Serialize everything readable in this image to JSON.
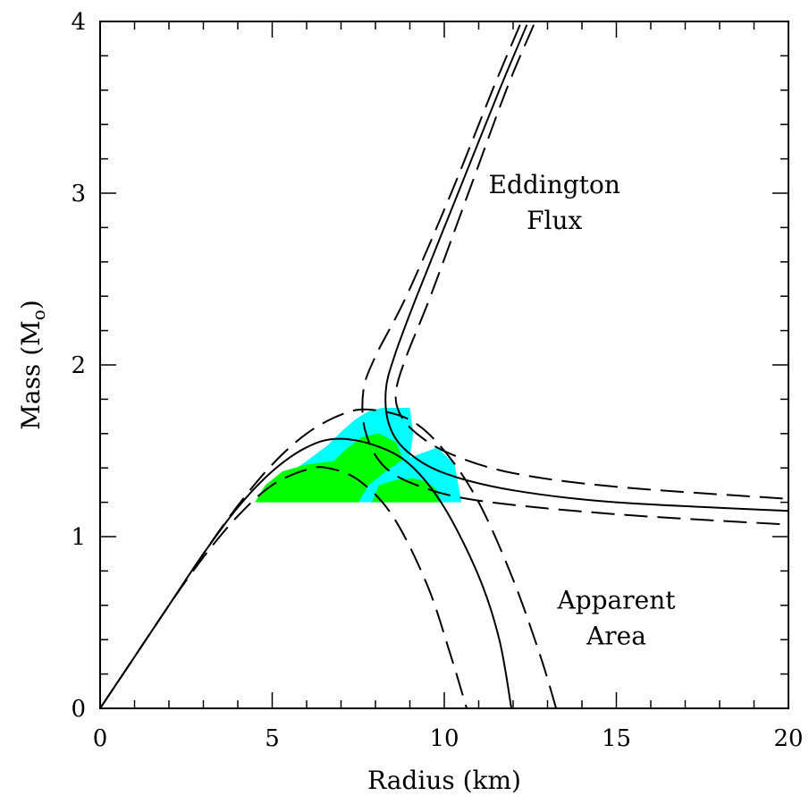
{
  "chart_data": {
    "type": "line",
    "title": "",
    "xlabel": "Radius (km)",
    "ylabel_main": "Mass (M",
    "ylabel_sub": "o",
    "ylabel_close": ")",
    "xlim": [
      0,
      20
    ],
    "ylim": [
      0,
      4
    ],
    "x_ticks": [
      0,
      5,
      10,
      15,
      20
    ],
    "y_ticks": [
      0,
      1,
      2,
      3,
      4
    ],
    "x_tick_labels": [
      "0",
      "5",
      "10",
      "15",
      "20"
    ],
    "y_tick_labels": [
      "0",
      "1",
      "2",
      "3",
      "4"
    ],
    "grid": false,
    "annotations": [
      {
        "lines": [
          "Eddington",
          "Flux"
        ],
        "x": 13.2,
        "y": 3.0
      },
      {
        "lines": [
          "Apparent",
          "Area"
        ],
        "x": 15.0,
        "y": 0.58
      }
    ],
    "colors": {
      "cyan": "#00ffff",
      "green": "#00ff00",
      "line": "#000000"
    },
    "regions": [
      {
        "color": "cyan",
        "points": [
          [
            4.6,
            1.2
          ],
          [
            5.2,
            1.33
          ],
          [
            6.0,
            1.44
          ],
          [
            6.6,
            1.53
          ],
          [
            7.0,
            1.61
          ],
          [
            7.4,
            1.68
          ],
          [
            7.8,
            1.73
          ],
          [
            8.2,
            1.75
          ],
          [
            9.0,
            1.75
          ],
          [
            9.1,
            1.6
          ],
          [
            9.0,
            1.46
          ],
          [
            9.8,
            1.52
          ],
          [
            10.3,
            1.42
          ],
          [
            10.5,
            1.2
          ]
        ]
      },
      {
        "color": "green",
        "points": [
          [
            4.5,
            1.2
          ],
          [
            4.8,
            1.3
          ],
          [
            5.3,
            1.38
          ],
          [
            6.0,
            1.42
          ],
          [
            6.8,
            1.44
          ],
          [
            7.1,
            1.5
          ],
          [
            7.6,
            1.58
          ],
          [
            8.1,
            1.6
          ],
          [
            8.6,
            1.55
          ],
          [
            8.8,
            1.45
          ],
          [
            8.3,
            1.38
          ],
          [
            7.8,
            1.3
          ],
          [
            7.5,
            1.2
          ]
        ]
      },
      {
        "color": "green",
        "points": [
          [
            7.9,
            1.2
          ],
          [
            8.1,
            1.3
          ],
          [
            8.6,
            1.33
          ],
          [
            9.1,
            1.34
          ],
          [
            9.5,
            1.32
          ],
          [
            9.8,
            1.27
          ],
          [
            9.9,
            1.2
          ]
        ]
      }
    ],
    "series": [
      {
        "style": "solid",
        "values": [
          [
            0,
            0
          ],
          [
            1,
            0.3
          ],
          [
            2,
            0.6
          ],
          [
            3,
            0.9
          ],
          [
            4,
            1.17
          ],
          [
            5,
            1.38
          ],
          [
            6,
            1.52
          ],
          [
            6.9,
            1.57
          ],
          [
            8,
            1.53
          ],
          [
            9,
            1.42
          ],
          [
            10,
            1.17
          ],
          [
            11,
            0.77
          ],
          [
            11.6,
            0.4
          ],
          [
            11.95,
            0
          ]
        ]
      },
      {
        "style": "dashed",
        "values": [
          [
            0,
            0
          ],
          [
            1,
            0.3
          ],
          [
            2,
            0.6
          ],
          [
            3,
            0.9
          ],
          [
            4,
            1.18
          ],
          [
            5,
            1.42
          ],
          [
            6,
            1.6
          ],
          [
            7,
            1.71
          ],
          [
            7.8,
            1.74
          ],
          [
            9,
            1.68
          ],
          [
            10,
            1.5
          ],
          [
            11,
            1.2
          ],
          [
            12,
            0.75
          ],
          [
            12.8,
            0.3
          ],
          [
            13.25,
            0
          ]
        ]
      },
      {
        "style": "dashed",
        "values": [
          [
            0,
            0
          ],
          [
            1,
            0.3
          ],
          [
            2,
            0.6
          ],
          [
            3,
            0.88
          ],
          [
            4,
            1.12
          ],
          [
            5,
            1.3
          ],
          [
            6,
            1.39
          ],
          [
            6.6,
            1.4
          ],
          [
            7.5,
            1.33
          ],
          [
            8.5,
            1.12
          ],
          [
            9.5,
            0.72
          ],
          [
            10.2,
            0.3
          ],
          [
            10.65,
            0
          ]
        ]
      },
      {
        "style": "solid",
        "values": [
          [
            12.4,
            3.98
          ],
          [
            11.6,
            3.6
          ],
          [
            10.4,
            3.0
          ],
          [
            9.2,
            2.4
          ],
          [
            8.55,
            2.05
          ],
          [
            8.3,
            1.85
          ],
          [
            8.4,
            1.65
          ],
          [
            8.9,
            1.5
          ],
          [
            10,
            1.37
          ],
          [
            12,
            1.27
          ],
          [
            15,
            1.2
          ],
          [
            20,
            1.15
          ]
        ]
      },
      {
        "style": "dashed",
        "values": [
          [
            12.6,
            3.98
          ],
          [
            11.8,
            3.6
          ],
          [
            10.7,
            3.0
          ],
          [
            9.6,
            2.4
          ],
          [
            8.9,
            2.05
          ],
          [
            8.6,
            1.85
          ],
          [
            8.7,
            1.72
          ],
          [
            9.2,
            1.6
          ],
          [
            10.2,
            1.48
          ],
          [
            12,
            1.37
          ],
          [
            15,
            1.29
          ],
          [
            20,
            1.22
          ]
        ]
      },
      {
        "style": "dashed",
        "values": [
          [
            12.2,
            3.98
          ],
          [
            11.4,
            3.6
          ],
          [
            10.2,
            3.0
          ],
          [
            8.9,
            2.4
          ],
          [
            8.0,
            2.05
          ],
          [
            7.65,
            1.85
          ],
          [
            7.7,
            1.62
          ],
          [
            8.2,
            1.42
          ],
          [
            9.2,
            1.3
          ],
          [
            11,
            1.21
          ],
          [
            15,
            1.13
          ],
          [
            20,
            1.07
          ]
        ]
      }
    ]
  }
}
